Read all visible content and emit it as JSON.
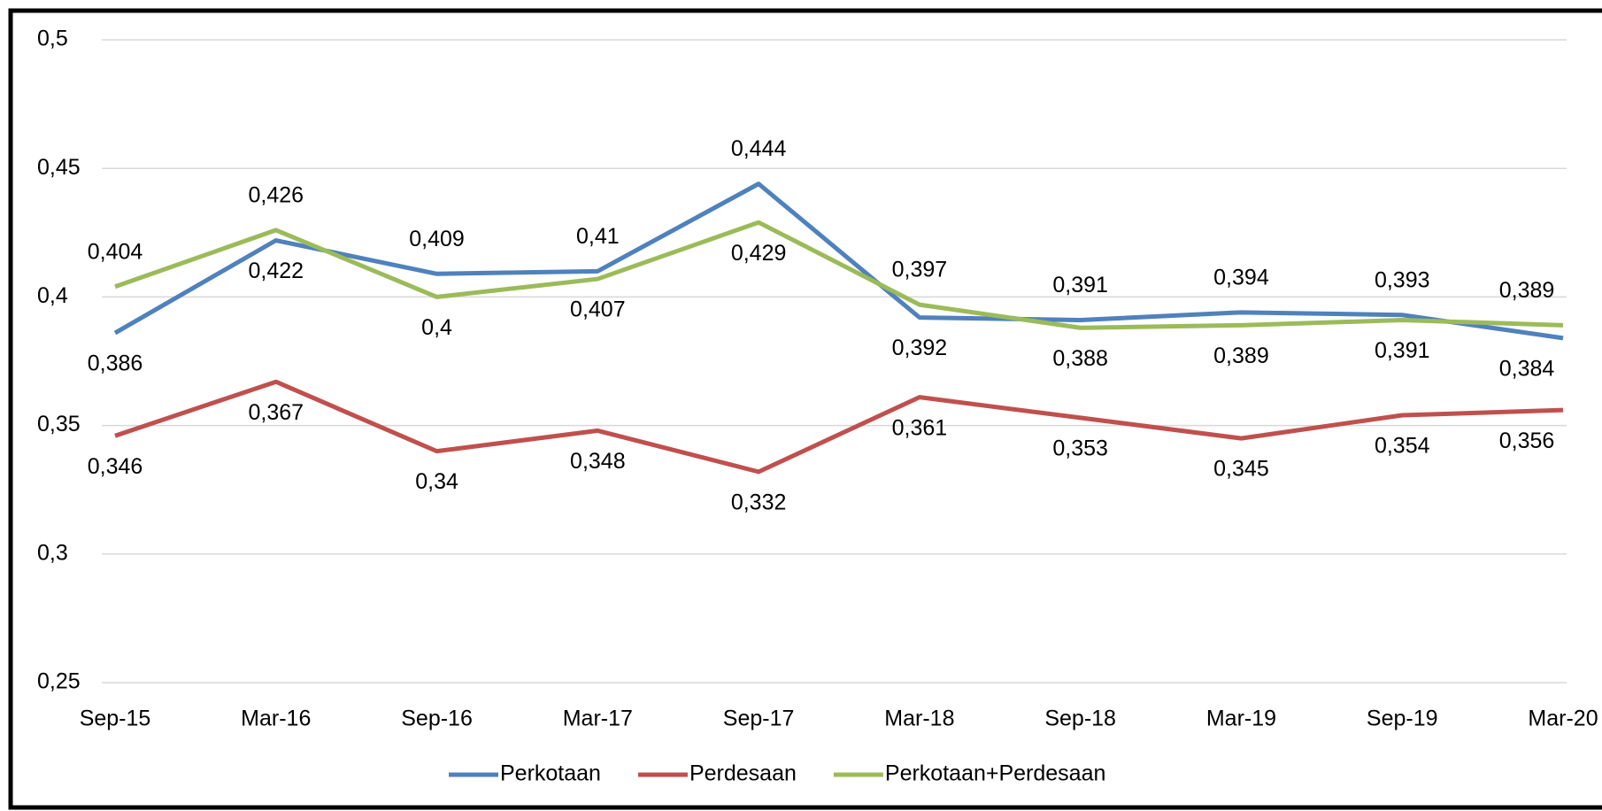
{
  "chart_data": {
    "type": "line",
    "categories": [
      "Sep-15",
      "Mar-16",
      "Sep-16",
      "Mar-17",
      "Sep-17",
      "Mar-18",
      "Sep-18",
      "Mar-19",
      "Sep-19",
      "Mar-20"
    ],
    "series": [
      {
        "name": "Perkotaan",
        "color": "#4f81bd",
        "values": [
          0.386,
          0.422,
          0.409,
          0.41,
          0.444,
          0.392,
          0.391,
          0.394,
          0.393,
          0.384
        ],
        "value_labels": [
          "0,386",
          "0,422",
          "0,409",
          "0,41",
          "0,444",
          "0,392",
          "0,391",
          "0,394",
          "0,393",
          "0,384"
        ]
      },
      {
        "name": "Perdesaan",
        "color": "#c0504d",
        "values": [
          0.346,
          0.367,
          0.34,
          0.348,
          0.332,
          0.361,
          0.353,
          0.345,
          0.354,
          0.356
        ],
        "value_labels": [
          "0,346",
          "0,367",
          "0,34",
          "0,348",
          "0,332",
          "0,361",
          "0,353",
          "0,345",
          "0,354",
          "0,356"
        ]
      },
      {
        "name": "Perkotaan+Perdesaan",
        "color": "#9bbb59",
        "values": [
          0.404,
          0.426,
          0.4,
          0.407,
          0.429,
          0.397,
          0.388,
          0.389,
          0.391,
          0.389
        ],
        "value_labels": [
          "0,404",
          "0,426",
          "0,4",
          "0,407",
          "0,429",
          "0,397",
          "0,388",
          "0,389",
          "0,391",
          "0,389"
        ]
      }
    ],
    "ylim": [
      0.25,
      0.5
    ],
    "yticks": [
      {
        "value": 0.25,
        "label": "0,25"
      },
      {
        "value": 0.3,
        "label": "0,3"
      },
      {
        "value": 0.35,
        "label": "0,35"
      },
      {
        "value": 0.4,
        "label": "0,4"
      },
      {
        "value": 0.45,
        "label": "0,45"
      },
      {
        "value": 0.5,
        "label": "0,5"
      }
    ],
    "grid": true,
    "legend": "bottom"
  }
}
